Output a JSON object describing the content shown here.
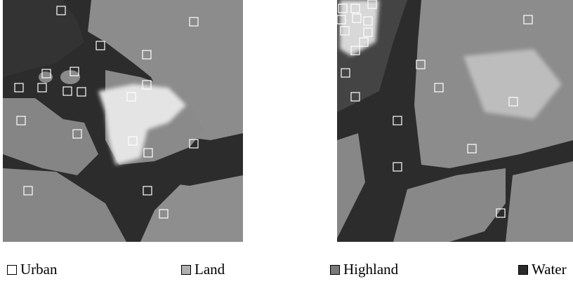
{
  "legend": [
    {
      "label": "Urban"
    },
    {
      "label": "Land"
    },
    {
      "label": "Highland"
    },
    {
      "label": "Water"
    }
  ]
}
